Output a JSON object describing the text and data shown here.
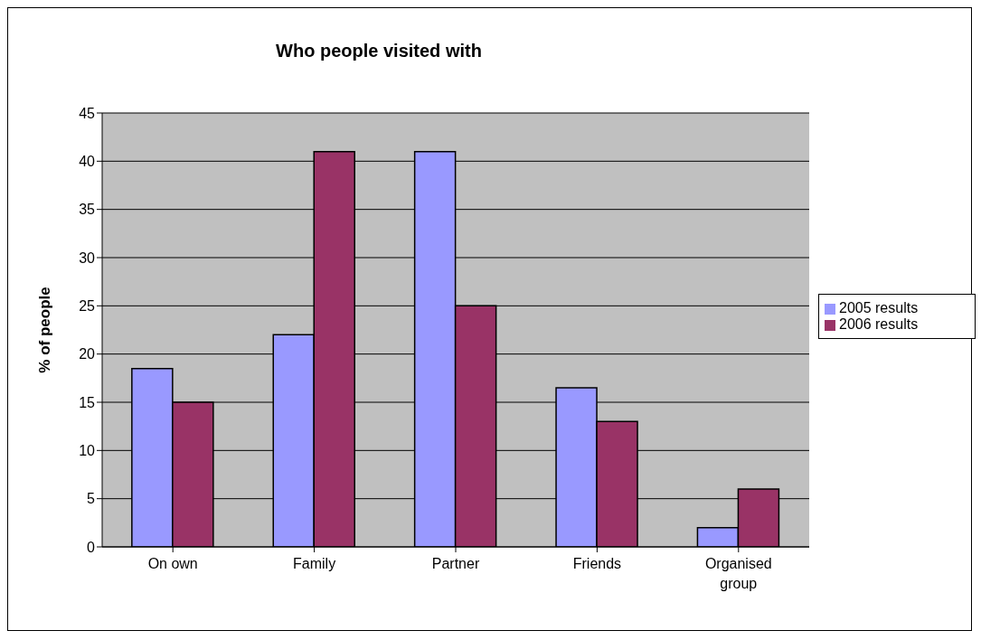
{
  "chart_data": {
    "type": "bar",
    "title": "Who people visited with",
    "ylabel": "% of people",
    "categories": [
      "On own",
      "Family",
      "Partner",
      "Friends",
      "Organised group"
    ],
    "series": [
      {
        "name": "2005 results",
        "color": "#9999ff",
        "values": [
          18.5,
          22,
          41,
          16.5,
          2
        ]
      },
      {
        "name": "2006 results",
        "color": "#993366",
        "values": [
          15,
          41,
          25,
          13,
          6
        ]
      }
    ],
    "ylim": [
      0,
      45
    ],
    "yticks": [
      0,
      5,
      10,
      15,
      20,
      25,
      30,
      35,
      40,
      45
    ],
    "grid": "y",
    "legend": "right"
  }
}
